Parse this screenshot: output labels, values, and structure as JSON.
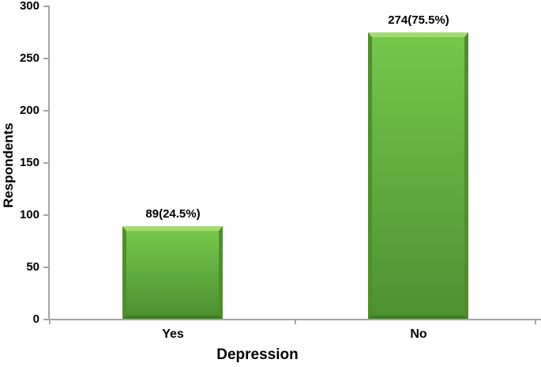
{
  "chart_data": {
    "type": "bar",
    "title": "",
    "categories": [
      "Yes",
      "No"
    ],
    "values": [
      89,
      274
    ],
    "data_labels": [
      "89(24.5%)",
      "274(75.5%)"
    ],
    "percentages": [
      24.5,
      75.5
    ],
    "xlabel": "Depression",
    "ylabel": "Respondents",
    "ylim": [
      0,
      300
    ],
    "yticks": [
      0,
      50,
      100,
      150,
      200,
      250,
      300
    ],
    "grid": false,
    "legend": false,
    "bar_style": "3d-bevel",
    "bar_gradient_top": "#74C74B",
    "bar_gradient_bottom": "#4E9130",
    "bevel_top": "#A2DE6E",
    "bevel_side": "#4F8F2B",
    "bevel_bottom": "#417C22",
    "axis_color": "#A6A6A6",
    "text_color": "#000000",
    "background_color": "#FFFFFF"
  }
}
